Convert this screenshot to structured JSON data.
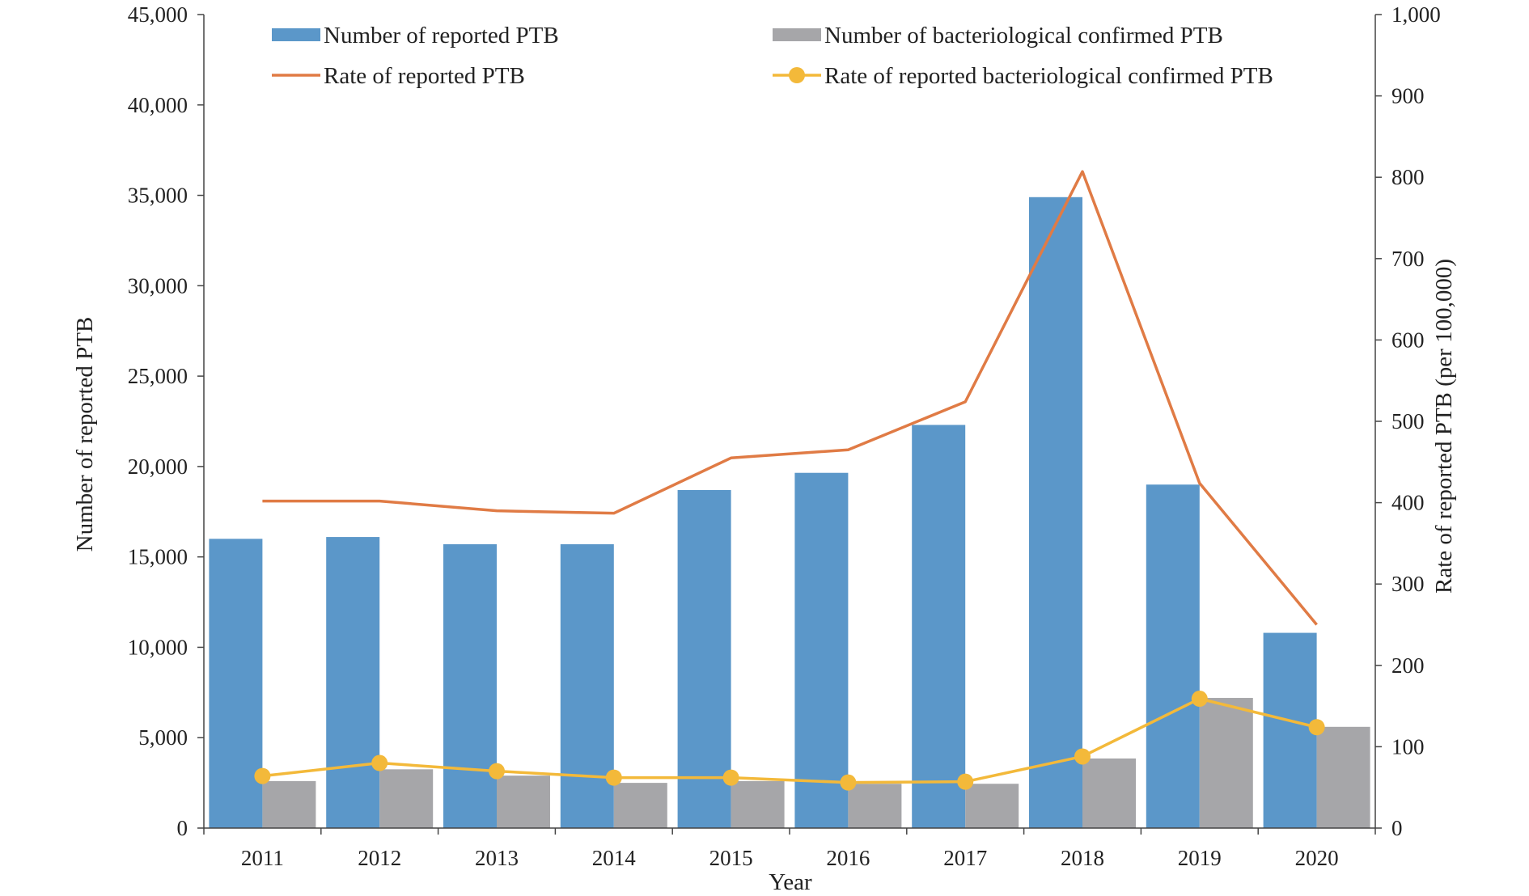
{
  "chart_data": {
    "type": "bar",
    "categories": [
      "2011",
      "2012",
      "2013",
      "2014",
      "2015",
      "2016",
      "2017",
      "2018",
      "2019",
      "2020"
    ],
    "xlabel": "Year",
    "ylabel": "Number of reported PTB",
    "y2label": "Rate of reported PTB (per 100,000)",
    "ylim": [
      0,
      45000
    ],
    "y2lim": [
      0,
      1000
    ],
    "yticks": [
      0,
      5000,
      10000,
      15000,
      20000,
      25000,
      30000,
      35000,
      40000,
      45000
    ],
    "y2ticks": [
      0,
      100,
      200,
      300,
      400,
      500,
      600,
      700,
      800,
      900,
      1000
    ],
    "grid": false,
    "legend_position": "top",
    "series": [
      {
        "name": "Number of reported PTB",
        "type": "bar",
        "axis": "left",
        "color": "#5b97c9",
        "values": [
          16000,
          16100,
          15700,
          15700,
          18700,
          19650,
          22300,
          34900,
          19000,
          10800
        ]
      },
      {
        "name": "Number of bacteriological confirmed PTB",
        "type": "bar",
        "axis": "left",
        "color": "#a6a6a9",
        "values": [
          2600,
          3250,
          2900,
          2500,
          2600,
          2450,
          2450,
          3850,
          7200,
          5600
        ]
      },
      {
        "name": "Rate of reported PTB",
        "type": "line",
        "axis": "right",
        "color": "#e07b45",
        "values": [
          402,
          402,
          390,
          387,
          455,
          465,
          524,
          807,
          424,
          250
        ]
      },
      {
        "name": "Rate of reported bacteriological confirmed PTB",
        "type": "line",
        "axis": "right",
        "marker": "circle",
        "color": "#f3b93a",
        "values": [
          64,
          80,
          70,
          62,
          62,
          56,
          57,
          88,
          159,
          124
        ]
      }
    ]
  }
}
